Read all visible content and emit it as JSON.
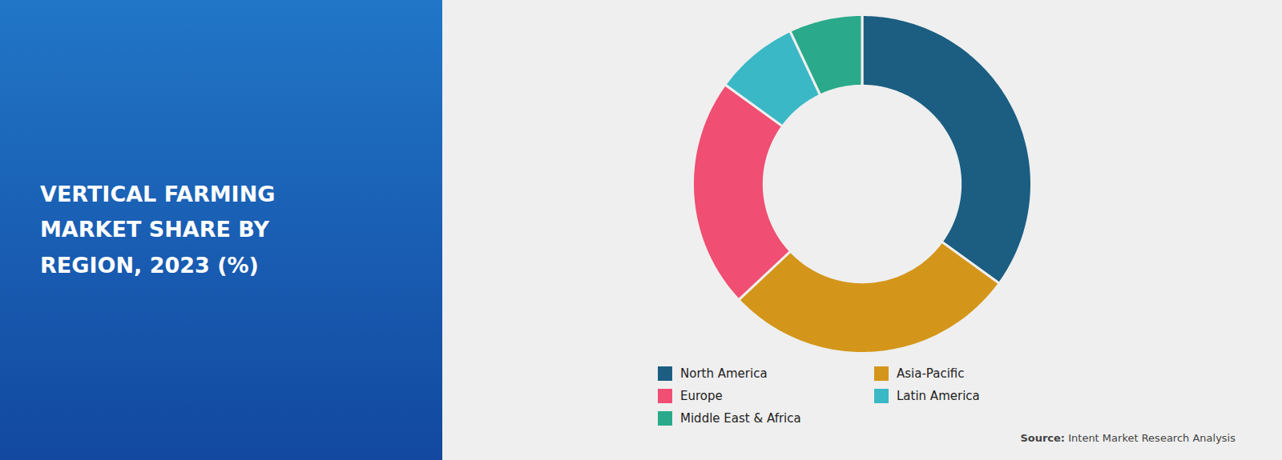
{
  "chart_data": {
    "type": "donut",
    "title": "VERTICAL FARMING\nMARKET SHARE BY\nREGION, 2023 (%)",
    "categories": [
      "North America",
      "Asia-Pacific",
      "Europe",
      "Latin America",
      "Middle East & Africa"
    ],
    "values": [
      35,
      28,
      22,
      8,
      7
    ],
    "colors": [
      "#1b5e82",
      "#d4961a",
      "#f04e72",
      "#3ab8c5",
      "#2aaa8a"
    ],
    "legend": "bottom",
    "caption": "Source: Intent Market Research Analysis"
  }
}
